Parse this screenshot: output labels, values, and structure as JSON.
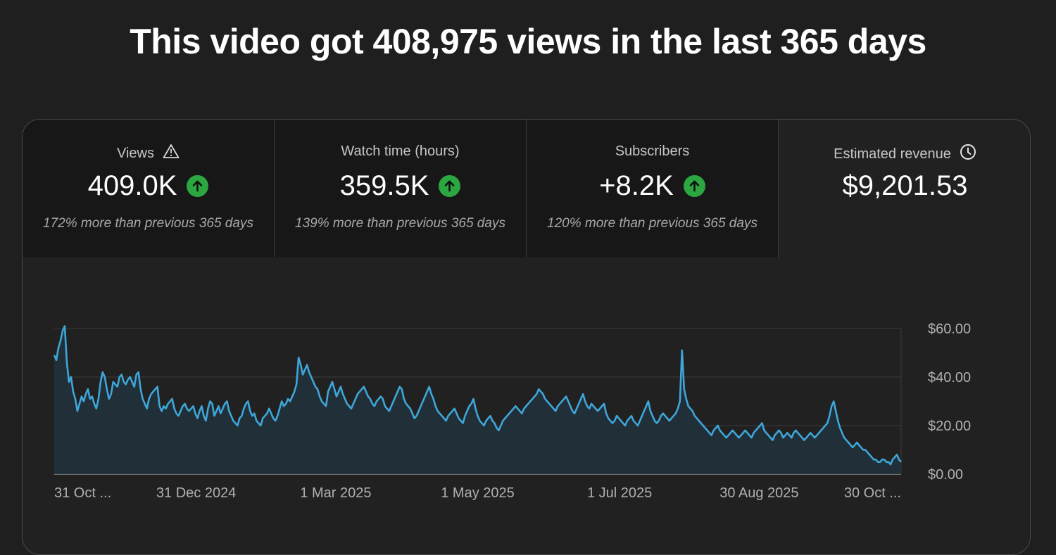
{
  "headline": "This video got 408,975 views in the last 365 days",
  "metrics": [
    {
      "label": "Views",
      "icon": "warning-icon",
      "value": "409.0K",
      "trend": "up",
      "sub": "172% more than previous 365 days"
    },
    {
      "label": "Watch time (hours)",
      "value": "359.5K",
      "trend": "up",
      "sub": "139% more than previous 365 days"
    },
    {
      "label": "Subscribers",
      "value": "+8.2K",
      "trend": "up",
      "sub": "120% more than previous 365 days"
    },
    {
      "label": "Estimated revenue",
      "icon": "clock-icon",
      "value": "$9,201.53",
      "sub": ""
    }
  ],
  "colors": {
    "accent_line": "#3ea6d9",
    "trend_up": "#2ba640"
  },
  "chart_data": {
    "type": "area",
    "x_tick_labels": [
      "31 Oct ...",
      "31 Dec 2024",
      "1 Mar 2025",
      "1 May 2025",
      "1 Jul 2025",
      "30 Aug 2025",
      "30 Oct ..."
    ],
    "y_tick_labels": [
      "$60.00",
      "$40.00",
      "$20.00",
      "$0.00"
    ],
    "ylim": [
      0,
      60
    ],
    "y_axis_position": "right",
    "grid": true,
    "x_start": "2024-10-31",
    "x_end": "2025-10-30",
    "values": [
      49,
      47,
      52,
      55,
      59,
      61,
      46,
      38,
      40,
      34,
      31,
      26,
      29,
      32,
      30,
      33,
      35,
      31,
      32,
      29,
      27,
      31,
      38,
      42,
      40,
      35,
      31,
      33,
      38,
      37,
      36,
      40,
      41,
      38,
      37,
      39,
      40,
      38,
      36,
      41,
      42,
      35,
      31,
      29,
      27,
      31,
      33,
      34,
      35,
      36,
      28,
      26,
      28,
      27,
      29,
      30,
      31,
      27,
      25,
      24,
      26,
      28,
      29,
      27,
      26,
      27,
      28,
      25,
      23,
      26,
      28,
      24,
      22,
      27,
      30,
      29,
      24,
      26,
      28,
      25,
      27,
      29,
      30,
      26,
      24,
      22,
      21,
      20,
      23,
      24,
      27,
      29,
      30,
      26,
      24,
      25,
      22,
      21,
      20,
      23,
      24,
      25,
      27,
      25,
      23,
      22,
      24,
      27,
      30,
      28,
      29,
      31,
      30,
      32,
      34,
      37,
      48,
      45,
      41,
      43,
      45,
      42,
      40,
      38,
      36,
      35,
      32,
      30,
      29,
      28,
      34,
      36,
      38,
      35,
      32,
      34,
      36,
      33,
      31,
      29,
      28,
      27,
      29,
      31,
      33,
      34,
      35,
      36,
      34,
      32,
      31,
      29,
      28,
      30,
      31,
      32,
      31,
      28,
      27,
      26,
      28,
      30,
      32,
      34,
      36,
      35,
      31,
      29,
      28,
      27,
      25,
      23,
      24,
      26,
      28,
      30,
      32,
      34,
      36,
      33,
      31,
      28,
      26,
      25,
      24,
      23,
      22,
      24,
      25,
      26,
      27,
      25,
      23,
      22,
      21,
      24,
      26,
      28,
      29,
      31,
      27,
      24,
      22,
      21,
      20,
      22,
      23,
      24,
      22,
      21,
      19,
      18,
      20,
      22,
      23,
      24,
      25,
      26,
      27,
      28,
      27,
      26,
      25,
      27,
      28,
      29,
      30,
      31,
      32,
      33,
      35,
      34,
      33,
      31,
      30,
      29,
      28,
      27,
      26,
      28,
      29,
      30,
      31,
      32,
      30,
      28,
      26,
      25,
      27,
      29,
      31,
      33,
      30,
      28,
      27,
      29,
      28,
      27,
      26,
      27,
      28,
      29,
      25,
      23,
      22,
      21,
      22,
      24,
      23,
      22,
      21,
      20,
      22,
      23,
      24,
      22,
      21,
      20,
      22,
      24,
      26,
      28,
      30,
      26,
      24,
      22,
      21,
      22,
      24,
      25,
      24,
      23,
      22,
      23,
      24,
      25,
      27,
      30,
      51,
      35,
      31,
      28,
      27,
      26,
      24,
      23,
      22,
      21,
      20,
      19,
      18,
      17,
      16,
      18,
      19,
      20,
      18,
      17,
      16,
      15,
      16,
      17,
      18,
      17,
      16,
      15,
      16,
      17,
      18,
      17,
      16,
      15,
      17,
      18,
      19,
      20,
      21,
      18,
      17,
      16,
      15,
      14,
      16,
      17,
      18,
      17,
      15,
      16,
      17,
      16,
      15,
      17,
      18,
      17,
      16,
      15,
      14,
      15,
      16,
      17,
      16,
      15,
      16,
      17,
      18,
      19,
      20,
      21,
      24,
      28,
      30,
      26,
      22,
      19,
      17,
      15,
      14,
      13,
      12,
      11,
      12,
      13,
      12,
      11,
      10,
      10,
      9,
      8,
      7,
      6,
      6,
      5,
      5,
      6,
      6,
      5,
      5,
      4,
      6,
      7,
      8,
      6,
      5
    ]
  }
}
